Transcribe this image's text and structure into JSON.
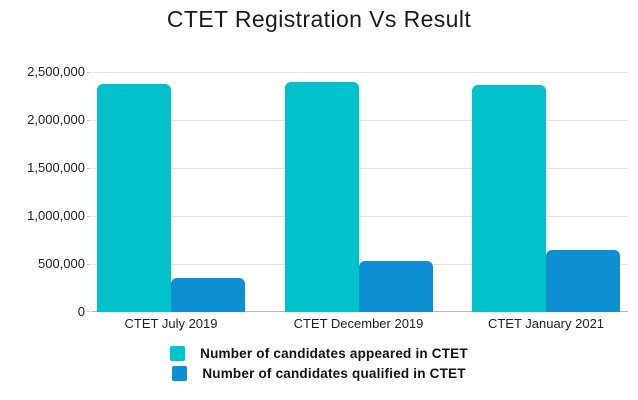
{
  "chart_data": {
    "type": "bar",
    "title": "CTET Registration Vs Result",
    "categories": [
      "CTET July 2019",
      "CTET December 2019",
      "CTET January 2021"
    ],
    "series": [
      {
        "name": "Number of candidates appeared in CTET",
        "color": "#00C2CB",
        "values": [
          2380000,
          2400000,
          2360000
        ]
      },
      {
        "name": "Number of candidates qualified in CTET",
        "color": "#0D8FD2",
        "values": [
          350000,
          530000,
          645000
        ]
      }
    ],
    "ylim": [
      0,
      2500000
    ],
    "yticks": [
      {
        "value": 0,
        "label": "0"
      },
      {
        "value": 500000,
        "label": "500,000"
      },
      {
        "value": 1000000,
        "label": "1,000,000"
      },
      {
        "value": 1500000,
        "label": "1,500,000"
      },
      {
        "value": 2000000,
        "label": "2,000,000"
      },
      {
        "value": 2500000,
        "label": "2,500,000"
      }
    ],
    "grid": "horizontal",
    "legend_position": "bottom",
    "xlabel": "",
    "ylabel": ""
  },
  "colors": {
    "background": "#ffffff",
    "gridline": "#e4e4e4",
    "baseline": "#b8b8b8",
    "tick": "#cfcfcf",
    "text": "#1f1f1f"
  }
}
